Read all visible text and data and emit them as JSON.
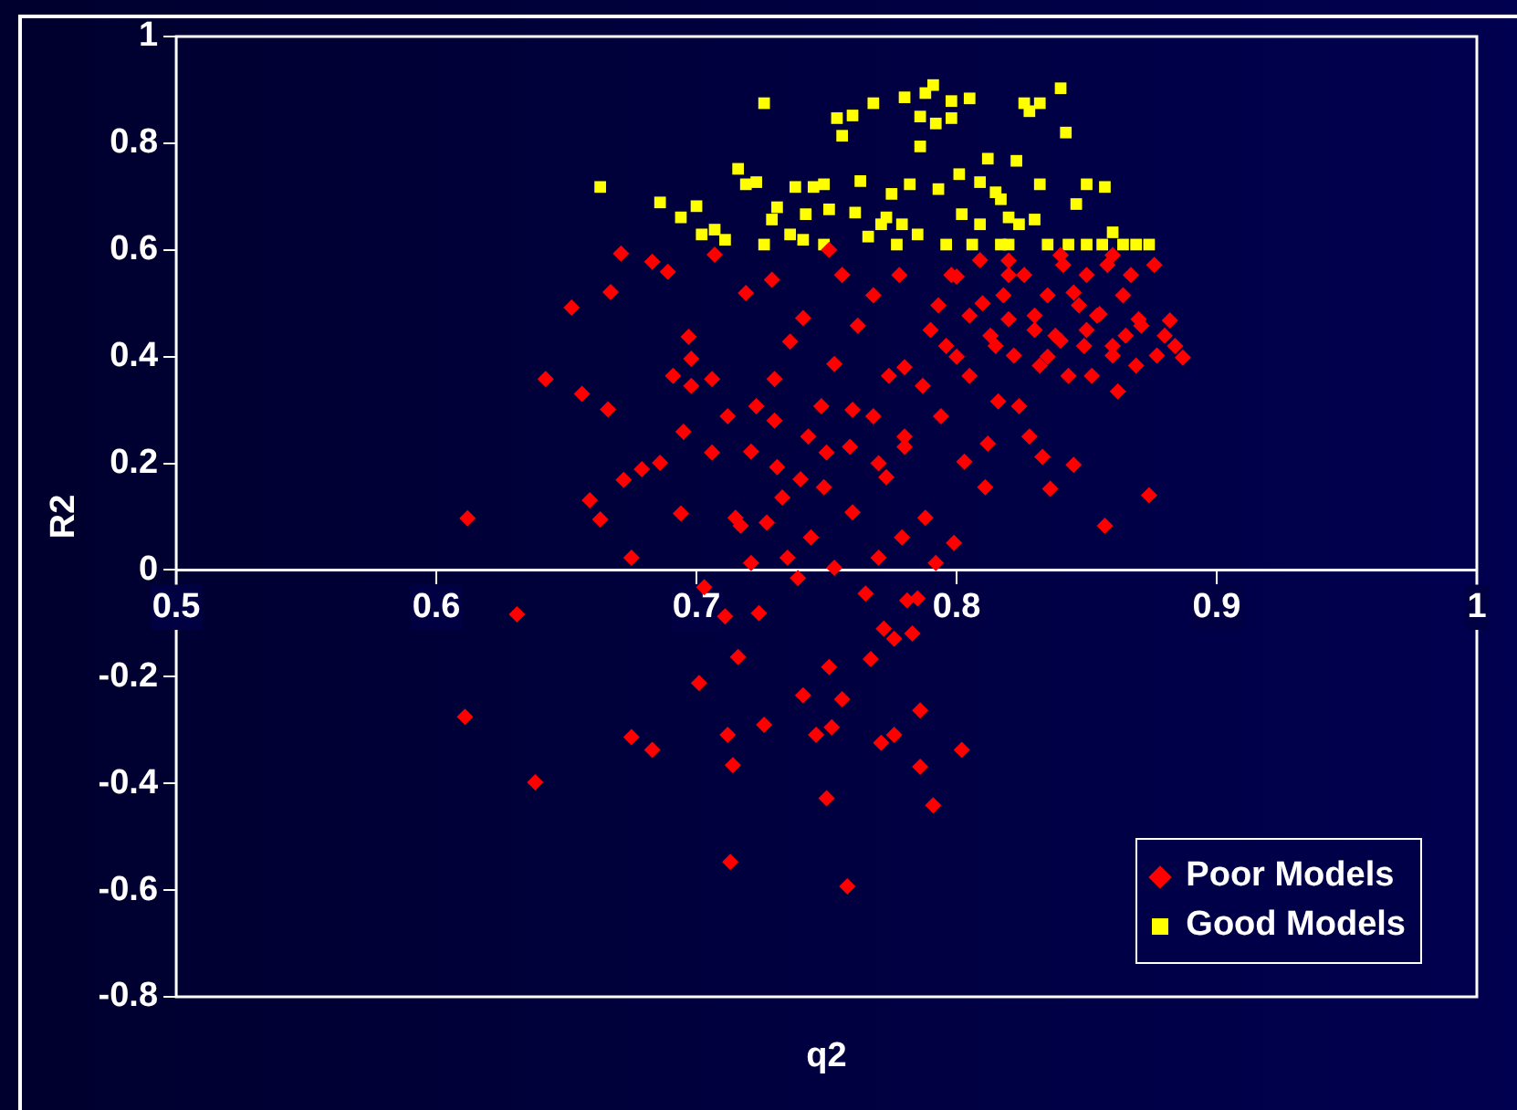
{
  "chart_data": {
    "type": "scatter",
    "xlabel": "q2",
    "ylabel": "R2",
    "xlim": [
      0.5,
      1
    ],
    "xticks": [
      0.5,
      0.6,
      0.7,
      0.8,
      0.9,
      1
    ],
    "ylim": [
      -0.8,
      1
    ],
    "yticks": [
      -0.8,
      -0.6,
      -0.4,
      -0.2,
      0,
      0.2,
      0.4,
      0.6,
      0.8,
      1
    ],
    "grid": false,
    "legend": "bottom right",
    "series": [
      {
        "name": "Poor Models",
        "color": "#ff0000",
        "marker": "diamond",
        "x": [
          0.612,
          0.611,
          0.631,
          0.638,
          0.642,
          0.652,
          0.656,
          0.659,
          0.663,
          0.666,
          0.667,
          0.671,
          0.672,
          0.675,
          0.675,
          0.679,
          0.683,
          0.683,
          0.686,
          0.689,
          0.691,
          0.694,
          0.695,
          0.697,
          0.698,
          0.698,
          0.701,
          0.703,
          0.706,
          0.706,
          0.707,
          0.711,
          0.712,
          0.713,
          0.714,
          0.716,
          0.712,
          0.715,
          0.717,
          0.719,
          0.721,
          0.721,
          0.723,
          0.724,
          0.726,
          0.727,
          0.729,
          0.73,
          0.731,
          0.733,
          0.735,
          0.736,
          0.739,
          0.741,
          0.741,
          0.743,
          0.744,
          0.746,
          0.748,
          0.749,
          0.75,
          0.751,
          0.751,
          0.752,
          0.753,
          0.753,
          0.756,
          0.756,
          0.758,
          0.759,
          0.76,
          0.762,
          0.765,
          0.767,
          0.768,
          0.768,
          0.77,
          0.771,
          0.772,
          0.773,
          0.774,
          0.776,
          0.776,
          0.778,
          0.779,
          0.78,
          0.781,
          0.783,
          0.785,
          0.786,
          0.786,
          0.787,
          0.788,
          0.791,
          0.792,
          0.793,
          0.794,
          0.796,
          0.798,
          0.799,
          0.802,
          0.803,
          0.805,
          0.805,
          0.809,
          0.811,
          0.812,
          0.813,
          0.816,
          0.818,
          0.82,
          0.822,
          0.824,
          0.826,
          0.828,
          0.83,
          0.832,
          0.833,
          0.835,
          0.836,
          0.838,
          0.841,
          0.843,
          0.845,
          0.847,
          0.849,
          0.85,
          0.852,
          0.854,
          0.857,
          0.858,
          0.86,
          0.862,
          0.864,
          0.865,
          0.867,
          0.869,
          0.871,
          0.874,
          0.876,
          0.877,
          0.88,
          0.882,
          0.884,
          0.887,
          0.8,
          0.81,
          0.82,
          0.83,
          0.84,
          0.85,
          0.86,
          0.87,
          0.79,
          0.78,
          0.76,
          0.75,
          0.74,
          0.73,
          0.77,
          0.78,
          0.82,
          0.84,
          0.86,
          0.8,
          0.815,
          0.835,
          0.855,
          0.845
        ],
        "values": [
          0.097,
          -0.275,
          -0.083,
          -0.398,
          0.358,
          0.492,
          0.33,
          0.131,
          0.095,
          0.301,
          0.521,
          0.593,
          0.169,
          0.023,
          -0.313,
          0.189,
          0.578,
          -0.337,
          0.201,
          0.559,
          0.364,
          0.106,
          0.259,
          0.437,
          0.345,
          0.396,
          -0.212,
          -0.032,
          0.358,
          0.22,
          0.591,
          -0.087,
          -0.309,
          -0.547,
          -0.366,
          -0.163,
          0.288,
          0.098,
          0.083,
          0.519,
          0.013,
          0.222,
          0.307,
          -0.081,
          -0.29,
          0.089,
          0.544,
          0.358,
          0.193,
          0.136,
          0.023,
          0.428,
          -0.015,
          -0.235,
          0.472,
          0.25,
          0.061,
          -0.309,
          0.307,
          0.155,
          -0.428,
          -0.182,
          0.6,
          -0.295,
          0.386,
          0.004,
          -0.242,
          0.553,
          -0.593,
          0.231,
          0.108,
          0.458,
          -0.044,
          -0.167,
          0.288,
          0.515,
          0.023,
          -0.324,
          -0.11,
          0.174,
          0.364,
          -0.309,
          -0.129,
          0.553,
          0.061,
          0.231,
          -0.057,
          -0.119,
          -0.053,
          -0.263,
          -0.369,
          0.345,
          0.098,
          -0.441,
          0.013,
          0.496,
          0.288,
          0.42,
          0.553,
          0.051,
          -0.337,
          0.203,
          0.477,
          0.364,
          0.581,
          0.155,
          0.237,
          0.439,
          0.316,
          0.515,
          0.553,
          0.402,
          0.307,
          0.553,
          0.25,
          0.477,
          0.383,
          0.212,
          0.515,
          0.152,
          0.439,
          0.572,
          0.364,
          0.197,
          0.496,
          0.42,
          0.553,
          0.364,
          0.477,
          0.083,
          0.572,
          0.402,
          0.335,
          0.515,
          0.439,
          0.553,
          0.383,
          0.458,
          0.14,
          0.572,
          0.402,
          0.439,
          0.468,
          0.42,
          0.398,
          0.55,
          0.5,
          0.47,
          0.45,
          0.43,
          0.45,
          0.42,
          0.47,
          0.45,
          0.38,
          0.3,
          0.22,
          0.17,
          0.28,
          0.2,
          0.25,
          0.58,
          0.59,
          0.59,
          0.4,
          0.42,
          0.4,
          0.48,
          0.52
        ]
      },
      {
        "name": "Good Models",
        "color": "#ffff00",
        "marker": "square",
        "x": [
          0.663,
          0.686,
          0.694,
          0.7,
          0.702,
          0.707,
          0.711,
          0.716,
          0.719,
          0.723,
          0.726,
          0.726,
          0.729,
          0.731,
          0.736,
          0.738,
          0.742,
          0.745,
          0.749,
          0.751,
          0.754,
          0.756,
          0.76,
          0.761,
          0.763,
          0.766,
          0.768,
          0.773,
          0.775,
          0.777,
          0.78,
          0.782,
          0.785,
          0.786,
          0.786,
          0.788,
          0.791,
          0.792,
          0.793,
          0.796,
          0.798,
          0.798,
          0.801,
          0.802,
          0.805,
          0.806,
          0.809,
          0.812,
          0.815,
          0.817,
          0.82,
          0.823,
          0.826,
          0.828,
          0.83,
          0.832,
          0.832,
          0.84,
          0.842,
          0.846,
          0.85,
          0.857,
          0.86,
          0.835,
          0.843,
          0.85,
          0.856,
          0.864,
          0.869,
          0.874,
          0.82,
          0.779,
          0.771,
          0.749,
          0.741,
          0.809,
          0.817,
          0.824
        ],
        "values": [
          0.718,
          0.689,
          0.661,
          0.682,
          0.629,
          0.638,
          0.619,
          0.752,
          0.723,
          0.727,
          0.875,
          0.61,
          0.657,
          0.68,
          0.629,
          0.718,
          0.667,
          0.718,
          0.723,
          0.676,
          0.847,
          0.814,
          0.852,
          0.67,
          0.729,
          0.625,
          0.875,
          0.661,
          0.705,
          0.61,
          0.886,
          0.723,
          0.629,
          0.85,
          0.794,
          0.894,
          0.909,
          0.837,
          0.714,
          0.61,
          0.879,
          0.847,
          0.742,
          0.667,
          0.884,
          0.61,
          0.727,
          0.771,
          0.708,
          0.61,
          0.661,
          0.767,
          0.875,
          0.86,
          0.657,
          0.723,
          0.875,
          0.903,
          0.82,
          0.686,
          0.723,
          0.718,
          0.633,
          0.61,
          0.61,
          0.61,
          0.61,
          0.61,
          0.61,
          0.61,
          0.61,
          0.648,
          0.648,
          0.61,
          0.619,
          0.648,
          0.695,
          0.648
        ]
      }
    ]
  }
}
